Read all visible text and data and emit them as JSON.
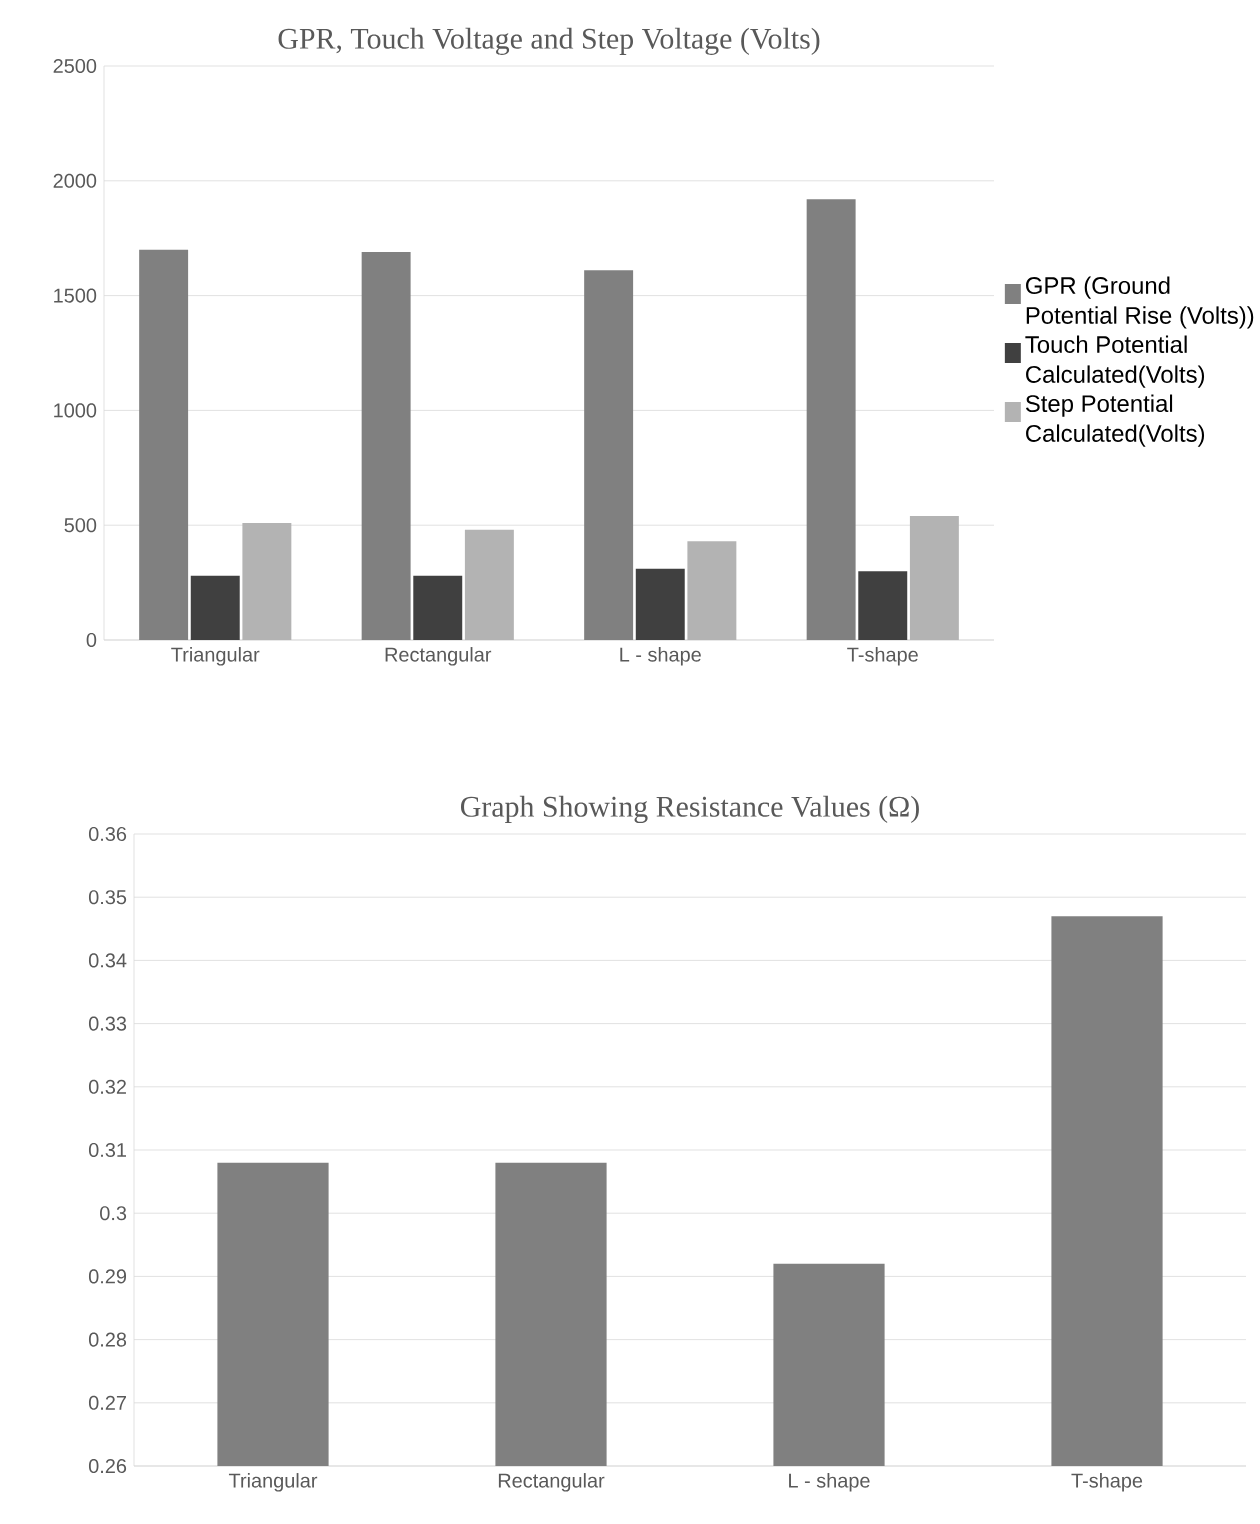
{
  "chart_data": [
    {
      "type": "bar",
      "title": "GPR, Touch Voltage and Step Voltage (Volts)",
      "categories": [
        "Triangular",
        "Rectangular",
        "L - shape",
        "T-shape"
      ],
      "series": [
        {
          "name": "GPR (Ground Potential Rise (Volts))",
          "color": "#808080",
          "values": [
            1700,
            1690,
            1610,
            1920
          ]
        },
        {
          "name": "Touch Potential Calculated(Volts)",
          "color": "#404040",
          "values": [
            280,
            280,
            310,
            300
          ]
        },
        {
          "name": "Step Potential Calculated(Volts)",
          "color": "#b3b3b3",
          "values": [
            510,
            480,
            430,
            540
          ]
        }
      ],
      "ylim": [
        0,
        2500
      ],
      "yticks": [
        0,
        500,
        1000,
        1500,
        2000,
        2500
      ],
      "grid": "y",
      "legend": "right"
    },
    {
      "type": "bar",
      "title": "Graph Showing Resistance Values (Ω)",
      "categories": [
        "Triangular",
        "Rectangular",
        "L - shape",
        "T-shape"
      ],
      "values": [
        0.308,
        0.308,
        0.292,
        0.347
      ],
      "color": "#808080",
      "ylim": [
        0.26,
        0.36
      ],
      "yticks": [
        0.26,
        0.27,
        0.28,
        0.29,
        0.3,
        0.31,
        0.32,
        0.33,
        0.34,
        0.35,
        0.36
      ],
      "grid": "y"
    }
  ]
}
